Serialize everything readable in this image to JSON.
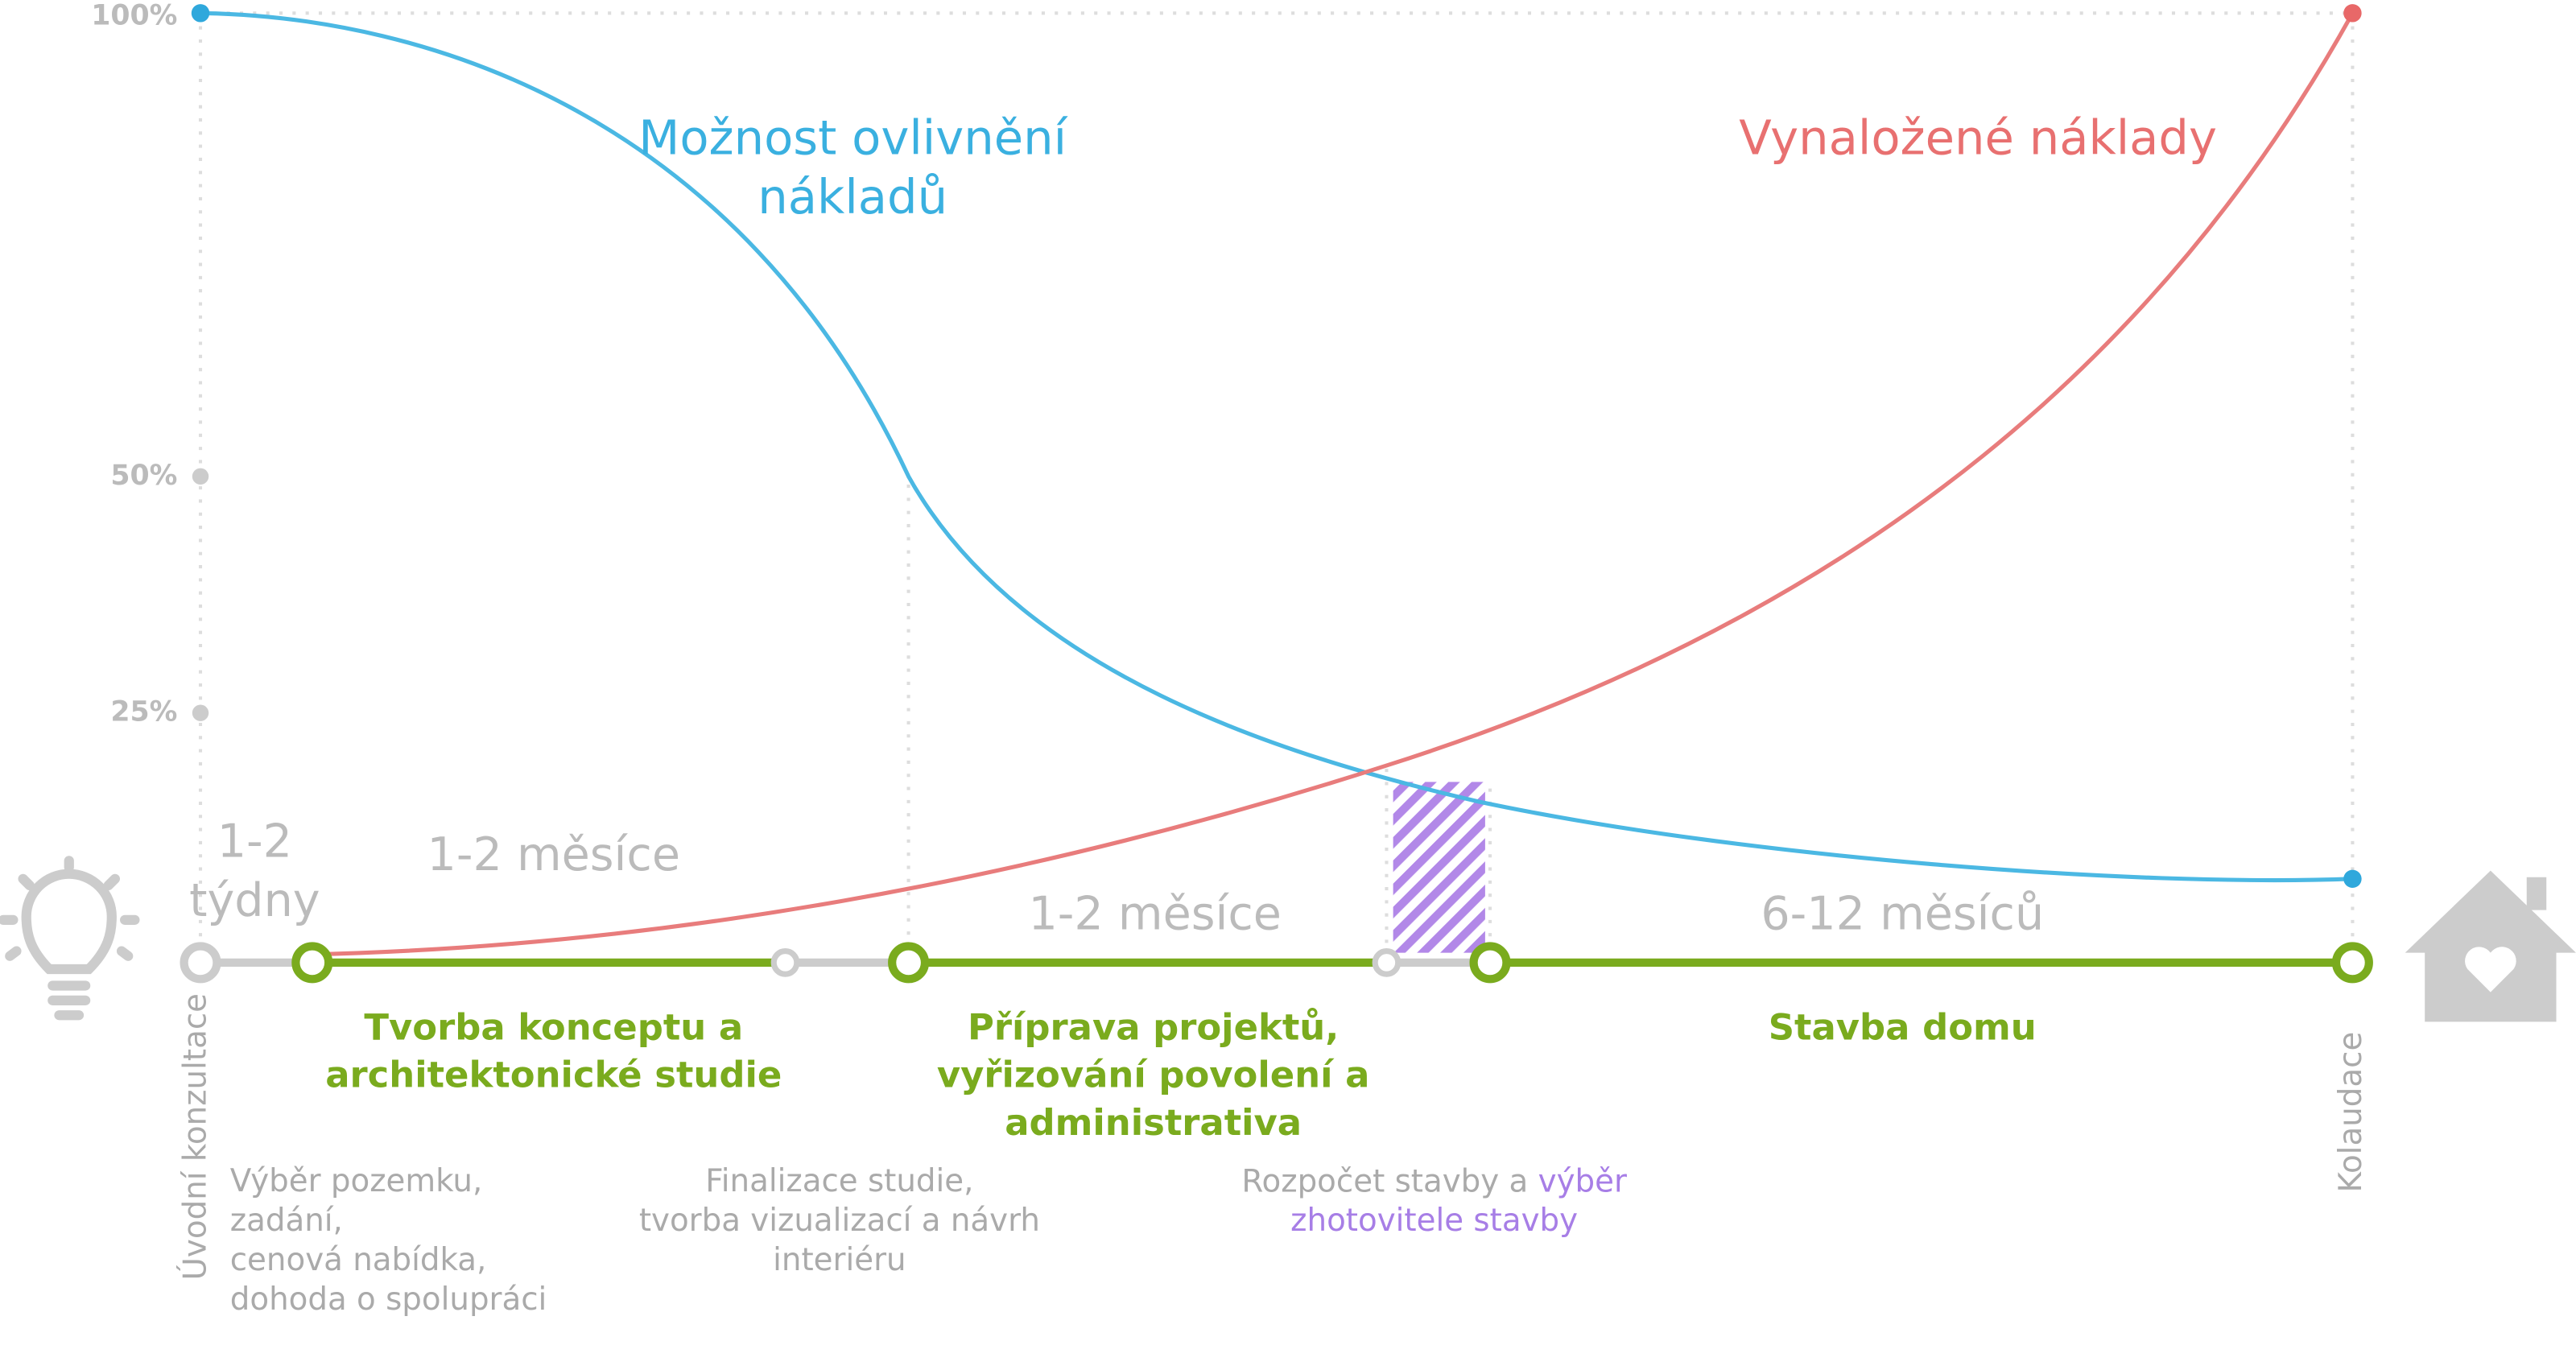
{
  "axis_labels": [
    "100%",
    "50%",
    "25%"
  ],
  "curve_labels": {
    "influence": [
      "Možnost ovlivnění",
      "nákladů"
    ],
    "costs": [
      "Vynaložené náklady"
    ]
  },
  "durations": [
    [
      "1-2",
      "týdny"
    ],
    [
      "1-2 měsíce"
    ],
    [
      "1-2 měsíce"
    ],
    [
      "6-12 měsíců"
    ]
  ],
  "phases": [
    [
      "Tvorba konceptu a",
      "architektonické studie"
    ],
    [
      "Příprava projektů,",
      "vyřizování povolení a",
      "administrativa"
    ],
    [
      "Stavba domu"
    ]
  ],
  "milestones": {
    "start": "Úvodní konzultace",
    "end": "Kolaudace"
  },
  "notes": [
    [
      "Výběr pozemku,",
      "zadání,",
      "cenová nabídka,",
      "dohoda o spolupráci"
    ],
    [
      "Finalizace studie,",
      "tvorba vizualizací a návrh",
      "interiéru"
    ],
    [
      "Rozpočet stavby a"
    ]
  ],
  "note_highlight": [
    "výběr",
    "zhotovitele stavby"
  ]
}
